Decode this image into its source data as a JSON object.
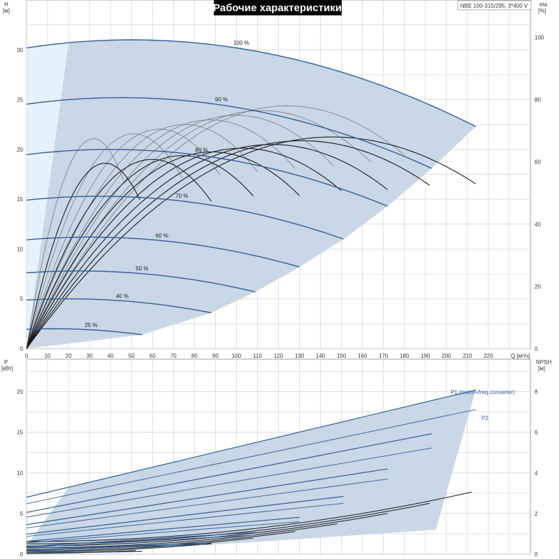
{
  "colors": {
    "envelope": "#c9d7e6",
    "envelope_light": "#e7f1fb",
    "grid": "#cfcfcf",
    "main_curve": "#2f5f97",
    "thin_curve": "#707070",
    "dark_curve": "#1b1b1b"
  },
  "chart_data": [
    {
      "type": "line",
      "title": "Рабочие характеристики",
      "model_box": "NBE 100-315/295, 3*400 V",
      "xlabel": "Q [м³/ч]",
      "ylabel": "H",
      "ylabel_unit": "[м]",
      "y2label": "eta",
      "y2label_unit": "[%]",
      "xlim": [
        0,
        240
      ],
      "ylim": [
        0,
        35
      ],
      "y2lim": [
        0,
        112
      ],
      "xticks": [
        "0",
        "10",
        "20",
        "30",
        "40",
        "50",
        "60",
        "70",
        "80",
        "90",
        "100",
        "110",
        "120",
        "130",
        "140",
        "150",
        "160",
        "170",
        "180",
        "190",
        "200",
        "210",
        "220"
      ],
      "yticks": [
        "0",
        "5",
        "10",
        "15",
        "20",
        "25",
        "30"
      ],
      "y2ticks": [
        "0",
        "20",
        "40",
        "60",
        "80",
        "100"
      ],
      "grid": true,
      "speed_curves": [
        {
          "name": "100 %",
          "h0": 30.8,
          "peak": 31.0,
          "qpeak": 50,
          "qmax": 214,
          "hend": 22.3
        },
        {
          "name": "90 %",
          "h0": 25.0,
          "peak": 25.2,
          "qpeak": 45,
          "qmax": 193,
          "hend": 18.1
        },
        {
          "name": "80 %",
          "h0": 19.8,
          "peak": 20.0,
          "qpeak": 40,
          "qmax": 172,
          "hend": 14.3
        },
        {
          "name": "70 %",
          "h0": 15.1,
          "peak": 15.3,
          "qpeak": 35,
          "qmax": 151,
          "hend": 11.0
        },
        {
          "name": "60 %",
          "h0": 11.1,
          "peak": 11.2,
          "qpeak": 30,
          "qmax": 130,
          "hend": 8.2
        },
        {
          "name": "50 %",
          "h0": 7.7,
          "peak": 7.8,
          "qpeak": 25,
          "qmax": 109,
          "hend": 5.7
        },
        {
          "name": "40 %",
          "h0": 4.9,
          "peak": 5.0,
          "qpeak": 20,
          "qmax": 88,
          "hend": 3.6
        },
        {
          "name": "25 %",
          "h0": 1.9,
          "peak": 2.0,
          "qpeak": 13,
          "qmax": 55,
          "hend": 1.4
        }
      ]
    },
    {
      "type": "line",
      "xlabel": "Q [м³/ч]",
      "ylabel": "P",
      "ylabel_unit": "[кВт]",
      "y2label": "NPSH",
      "y2label_unit": "[м]",
      "xlim": [
        0,
        240
      ],
      "ylim": [
        0,
        24
      ],
      "y2lim": [
        0,
        9.6
      ],
      "yticks": [
        "0",
        "5",
        "10",
        "15",
        "20"
      ],
      "y2ticks": [
        "0",
        "2",
        "4",
        "6",
        "8"
      ],
      "grid": true,
      "series": [
        {
          "name": "P1 (motor+freq.converter)",
          "x": [
            0,
            214
          ],
          "values": [
            7.0,
            20.2
          ]
        },
        {
          "name": "P2",
          "x": [
            0,
            214
          ],
          "values": [
            6.2,
            17.8
          ]
        }
      ],
      "npsh_end": {
        "q": 214,
        "value": 3.1
      }
    }
  ]
}
